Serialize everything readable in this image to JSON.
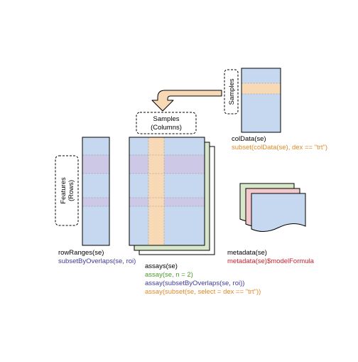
{
  "labels": {
    "samples_rotated": "Samples",
    "samples_box_line1": "Samples",
    "samples_box_line2": "(Columns)",
    "features_line1": "Features",
    "features_line2": "(Rows)"
  },
  "coldata": {
    "title": "colData(se)",
    "example": "subset(colData(se), dex == \"trt\")"
  },
  "rowranges": {
    "title": "rowRanges(se)",
    "example": "subsetByOverlaps(se, roi)"
  },
  "assays": {
    "title": "assays(se)",
    "ex1": "assay(se, n = 2)",
    "ex2": "assay(subsetByOverlaps(se, roi))",
    "ex3": "assay(subset(se, select = dex == \"trt\"))"
  },
  "metadata": {
    "title": "metadata(se)",
    "example": "metadata(se)$modelFormula"
  },
  "colors": {
    "blue": "#c5d8ef",
    "purple": "#cdc8e6",
    "orange": "#f8d9b6",
    "green": "#d8e7c9",
    "pink": "#f2c8cc",
    "green_text": "#4e9a2a",
    "blue_text": "#3e3a9a",
    "orange_text": "#e08a28",
    "red_text": "#cc1f2a"
  }
}
